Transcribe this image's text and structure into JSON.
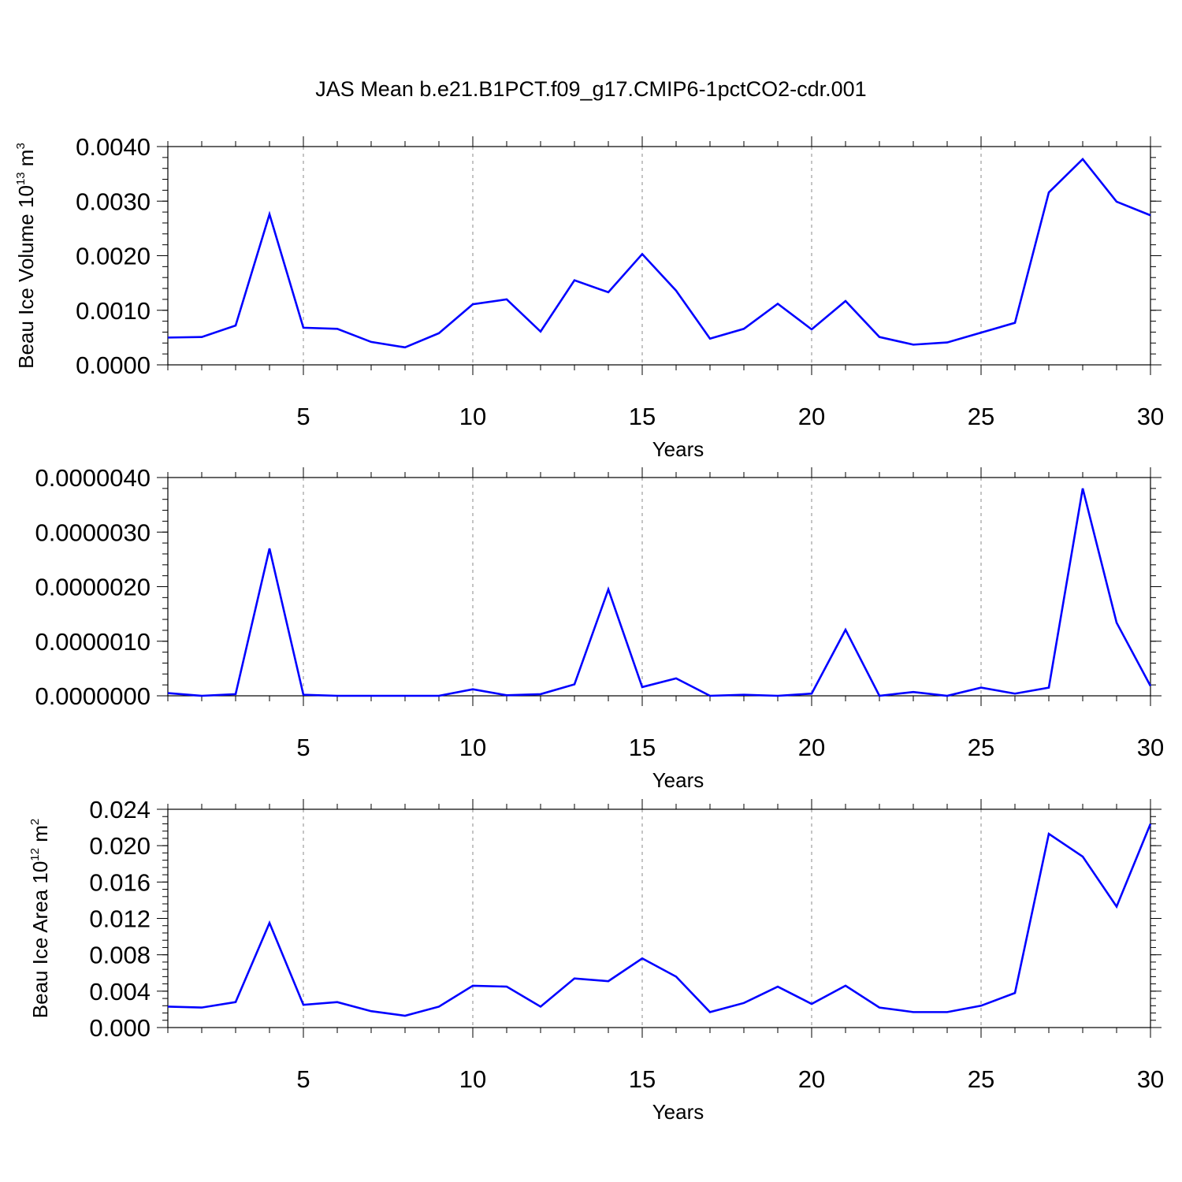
{
  "figure": {
    "title": "JAS Mean b.e21.B1PCT.f09_g17.CMIP6-1pctCO2-cdr.001"
  },
  "colors": {
    "line": "#0000ff",
    "axis": "#000000",
    "grid": "#888888"
  },
  "chart_data": [
    {
      "type": "line",
      "xlabel": "Years",
      "ylabel": {
        "main": "Beau Ice Volume 10",
        "exp": "13",
        "unit": " m",
        "unit_exp": "3"
      },
      "x": [
        1,
        2,
        3,
        4,
        5,
        6,
        7,
        8,
        9,
        10,
        11,
        12,
        13,
        14,
        15,
        16,
        17,
        18,
        19,
        20,
        21,
        22,
        23,
        24,
        25,
        26,
        27,
        28,
        29,
        30
      ],
      "values": [
        0.0005,
        0.00051,
        0.00072,
        0.00276,
        0.00068,
        0.00066,
        0.00042,
        0.00032,
        0.00058,
        0.00111,
        0.0012,
        0.00061,
        0.00155,
        0.00133,
        0.00203,
        0.00136,
        0.00048,
        0.00066,
        0.00112,
        0.00065,
        0.00117,
        0.00051,
        0.00037,
        0.00041,
        0.00059,
        0.00077,
        0.00316,
        0.00377,
        0.00299,
        0.00274
      ],
      "xlim": [
        1,
        30
      ],
      "ylim": [
        0,
        0.004
      ],
      "xticks": [
        5,
        10,
        15,
        20,
        25,
        30
      ],
      "xtick_labels": [
        "5",
        "10",
        "15",
        "20",
        "25",
        "30"
      ],
      "yticks": [
        0,
        0.001,
        0.002,
        0.003,
        0.004
      ],
      "ytick_labels": [
        "0.0000",
        "0.0010",
        "0.0020",
        "0.0030",
        "0.0040"
      ],
      "y_minor_step": 0.0002
    },
    {
      "type": "line",
      "xlabel": "Years",
      "ylabel": null,
      "x": [
        1,
        2,
        3,
        4,
        5,
        6,
        7,
        8,
        9,
        10,
        11,
        12,
        13,
        14,
        15,
        16,
        17,
        18,
        19,
        20,
        21,
        22,
        23,
        24,
        25,
        26,
        27,
        28,
        29,
        30
      ],
      "values": [
        5e-08,
        0.0,
        3e-08,
        2.7e-06,
        2e-08,
        0.0,
        0.0,
        0.0,
        0.0,
        1.2e-07,
        1e-08,
        3e-08,
        2.1e-07,
        1.95e-06,
        1.6e-07,
        3.2e-07,
        0.0,
        2e-08,
        0.0,
        4e-08,
        1.21e-06,
        0.0,
        7e-08,
        0.0,
        1.5e-07,
        4e-08,
        1.5e-07,
        3.8e-06,
        1.34e-06,
        1.8e-07
      ],
      "xlim": [
        1,
        30
      ],
      "ylim": [
        0,
        4e-06
      ],
      "xticks": [
        5,
        10,
        15,
        20,
        25,
        30
      ],
      "xtick_labels": [
        "5",
        "10",
        "15",
        "20",
        "25",
        "30"
      ],
      "yticks": [
        0,
        1e-06,
        2e-06,
        3e-06,
        4e-06
      ],
      "ytick_labels": [
        "0.0000000",
        "0.0000010",
        "0.0000020",
        "0.0000030",
        "0.0000040"
      ],
      "y_minor_step": 2e-07
    },
    {
      "type": "line",
      "xlabel": "Years",
      "ylabel": {
        "main": "Beau Ice Area 10",
        "exp": "12",
        "unit": " m",
        "unit_exp": "2"
      },
      "x": [
        1,
        2,
        3,
        4,
        5,
        6,
        7,
        8,
        9,
        10,
        11,
        12,
        13,
        14,
        15,
        16,
        17,
        18,
        19,
        20,
        21,
        22,
        23,
        24,
        25,
        26,
        27,
        28,
        29,
        30
      ],
      "values": [
        0.0023,
        0.0022,
        0.0028,
        0.0115,
        0.0025,
        0.0028,
        0.0018,
        0.0013,
        0.0023,
        0.0046,
        0.0045,
        0.0023,
        0.0054,
        0.0051,
        0.0076,
        0.0056,
        0.0017,
        0.0027,
        0.0045,
        0.0026,
        0.0046,
        0.0022,
        0.0017,
        0.0017,
        0.0024,
        0.0038,
        0.0213,
        0.0188,
        0.0133,
        0.0224
      ],
      "xlim": [
        1,
        30
      ],
      "ylim": [
        0,
        0.024
      ],
      "xticks": [
        5,
        10,
        15,
        20,
        25,
        30
      ],
      "xtick_labels": [
        "5",
        "10",
        "15",
        "20",
        "25",
        "30"
      ],
      "yticks": [
        0,
        0.004,
        0.008,
        0.012,
        0.016,
        0.02,
        0.024
      ],
      "ytick_labels": [
        "0.000",
        "0.004",
        "0.008",
        "0.012",
        "0.016",
        "0.020",
        "0.024"
      ],
      "y_minor_step": 0.0008
    }
  ]
}
